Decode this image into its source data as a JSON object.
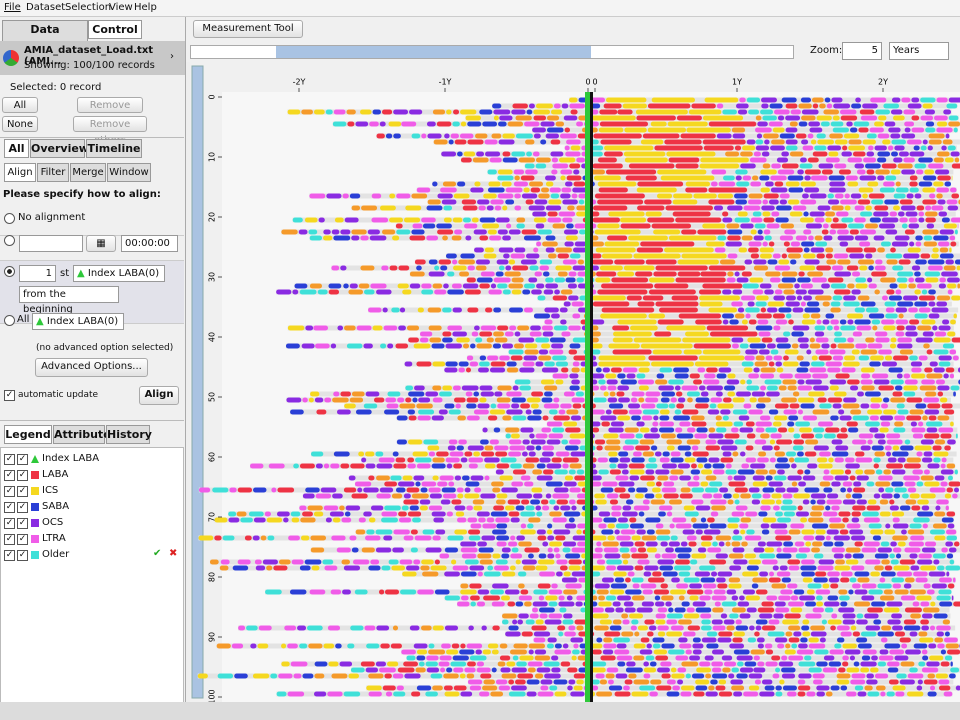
{
  "menu": [
    "File",
    "Dataset",
    "Selection",
    "View",
    "Help"
  ],
  "left_tabs": [
    "Data Manager",
    "Control"
  ],
  "dataset": {
    "name": "AMIA_dataset_Load.txt (AMI...",
    "showing": "Showing:  100/100 records"
  },
  "selected": "Selected: 0 record",
  "selection_buttons": [
    "All",
    "None",
    "Remove them",
    "Remove others"
  ],
  "view_tabs": [
    "All",
    "Overview",
    "Timeline"
  ],
  "control_tabs": [
    "Align",
    "Filter",
    "Merge",
    "Window"
  ],
  "align": {
    "prompt": "Please specify how to align:",
    "no_alignment": "No alignment",
    "time": "00:00:00",
    "nth": 1,
    "nth_suffix": "st",
    "event": "Index LABA(0)",
    "from": "from the beginning",
    "all": "All",
    "all_event": "Index LABA(0)",
    "advanced_status": "(no advanced option selected)",
    "advanced_button": "Advanced Options...",
    "auto_update": "automatic update",
    "align_button": "Align"
  },
  "legend_tabs": [
    "Legend",
    "Attribute",
    "History"
  ],
  "legend": [
    {
      "label": "Index LABA",
      "color": "#2ec83a"
    },
    {
      "label": "LABA",
      "color": "#ee3344"
    },
    {
      "label": "ICS",
      "color": "#f5d820"
    },
    {
      "label": "SABA",
      "color": "#2a3fd6"
    },
    {
      "label": "OCS",
      "color": "#8a2be2"
    },
    {
      "label": "LTRA",
      "color": "#f05ce8"
    },
    {
      "label": "Older",
      "color": "#3fe0d8"
    }
  ],
  "toolbar": {
    "measurement_tool": "Measurement Tool",
    "zoom_label": "Zoom:",
    "zoom": 5,
    "unit": "Years"
  },
  "timeline": {
    "x_ticks": [
      {
        "value": -2,
        "label": "-2Y"
      },
      {
        "value": -1,
        "label": "-1Y"
      },
      0,
      0,
      {
        "value": 1,
        "label": "1Y"
      },
      {
        "value": 2,
        "label": "2Y"
      }
    ],
    "row_ticks": [
      0,
      10,
      20,
      30,
      40,
      50,
      60,
      70,
      80,
      90,
      100
    ]
  }
}
